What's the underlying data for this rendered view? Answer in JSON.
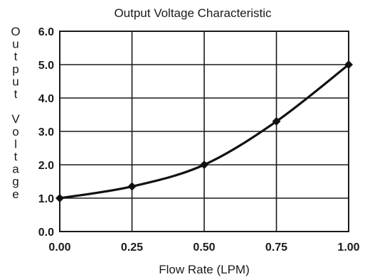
{
  "chart_data": {
    "type": "line",
    "title": "Output Voltage Characteristic",
    "xlabel": "Flow Rate (LPM)",
    "ylabel": "Output Voltage",
    "xlim": [
      0,
      1
    ],
    "ylim": [
      0,
      6
    ],
    "x_ticks": [
      "0.00",
      "0.25",
      "0.50",
      "0.75",
      "1.00"
    ],
    "y_ticks": [
      "0.0",
      "1.0",
      "2.0",
      "3.0",
      "4.0",
      "5.0",
      "6.0"
    ],
    "grid": true,
    "legend": "none",
    "series": [
      {
        "x": [
          0.0,
          0.25,
          0.5,
          0.75,
          1.0
        ],
        "y": [
          1.0,
          1.35,
          2.0,
          3.3,
          5.0
        ]
      }
    ],
    "colors": {
      "line": "#111111",
      "grid": "#1a1a1a",
      "text": "#1a1a1a"
    }
  }
}
